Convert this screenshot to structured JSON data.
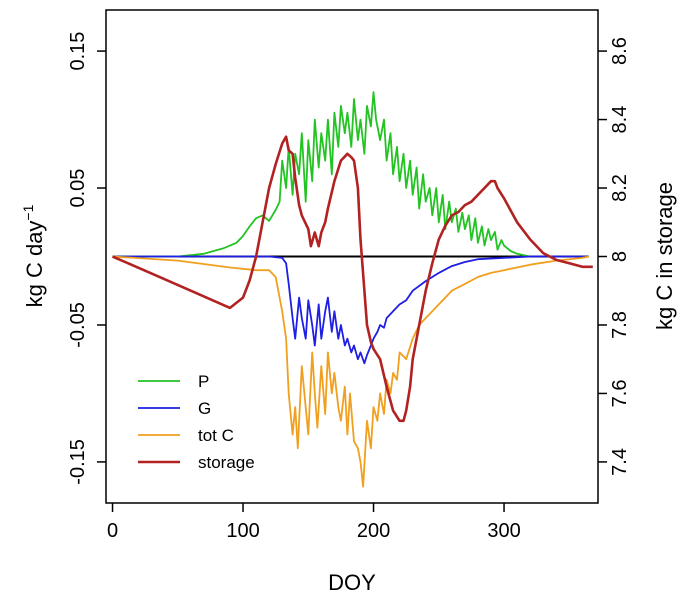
{
  "chart_data": {
    "type": "line",
    "xlabel": "DOY",
    "ylabel_left": "kg C day",
    "ylabel_left_superscript": "−1",
    "ylabel_right": "kg C in storage",
    "xlim": [
      -5,
      372
    ],
    "ylim_left": [
      -0.18,
      0.18
    ],
    "ylim_right": [
      7.28,
      8.72
    ],
    "x_ticks": [
      0,
      100,
      200,
      300
    ],
    "x_tick_labels": [
      "0",
      "100",
      "200",
      "300"
    ],
    "y_left_ticks": [
      0.15,
      0.05,
      -0.05,
      -0.15
    ],
    "y_left_tick_labels": [
      "0.15",
      "0.05",
      "-0.05",
      "-0.15"
    ],
    "y_right_ticks": [
      8.6,
      8.4,
      8.2,
      8.0,
      7.8,
      7.6,
      7.4
    ],
    "y_right_tick_labels": [
      "8.6",
      "8.4",
      "8.2",
      "8",
      "7.8",
      "7.6",
      "7.4"
    ],
    "grid": false,
    "legend_position": "bottom-left",
    "reference_line": {
      "y": 0,
      "color": "#000000"
    },
    "series": [
      {
        "name": "P",
        "axis": "left",
        "color": "#22c322",
        "x": [
          0,
          50,
          70,
          85,
          95,
          100,
          105,
          110,
          115,
          120,
          125,
          128,
          130,
          133,
          135,
          138,
          140,
          143,
          145,
          148,
          150,
          153,
          155,
          158,
          160,
          163,
          165,
          168,
          170,
          173,
          175,
          178,
          180,
          183,
          185,
          188,
          190,
          193,
          195,
          198,
          200,
          202,
          205,
          208,
          210,
          213,
          215,
          218,
          220,
          223,
          225,
          228,
          230,
          233,
          235,
          238,
          240,
          243,
          245,
          248,
          250,
          253,
          255,
          258,
          260,
          263,
          265,
          268,
          270,
          273,
          275,
          278,
          280,
          283,
          285,
          288,
          290,
          293,
          295,
          298,
          300,
          305,
          310,
          315,
          320
        ],
        "values": [
          0,
          0,
          0.002,
          0.006,
          0.01,
          0.015,
          0.022,
          0.028,
          0.03,
          0.026,
          0.034,
          0.04,
          0.07,
          0.05,
          0.08,
          0.045,
          0.075,
          0.06,
          0.09,
          0.04,
          0.085,
          0.055,
          0.1,
          0.065,
          0.09,
          0.07,
          0.1,
          0.06,
          0.105,
          0.08,
          0.11,
          0.09,
          0.105,
          0.08,
          0.115,
          0.085,
          0.1,
          0.075,
          0.11,
          0.095,
          0.12,
          0.1,
          0.085,
          0.1,
          0.07,
          0.09,
          0.06,
          0.08,
          0.055,
          0.075,
          0.05,
          0.07,
          0.045,
          0.065,
          0.035,
          0.06,
          0.04,
          0.05,
          0.03,
          0.05,
          0.025,
          0.045,
          0.02,
          0.04,
          0.025,
          0.035,
          0.018,
          0.032,
          0.02,
          0.03,
          0.012,
          0.028,
          0.01,
          0.022,
          0.008,
          0.02,
          0.012,
          0.018,
          0.005,
          0.012,
          0.008,
          0.004,
          0.002,
          0.001,
          0
        ]
      },
      {
        "name": "G",
        "axis": "left",
        "color": "#1e1ee6",
        "x": [
          0,
          120,
          130,
          133,
          135,
          138,
          140,
          143,
          145,
          148,
          150,
          153,
          155,
          158,
          160,
          163,
          165,
          168,
          170,
          173,
          175,
          178,
          180,
          183,
          185,
          188,
          190,
          193,
          195,
          198,
          200,
          203,
          205,
          208,
          210,
          215,
          220,
          225,
          230,
          240,
          250,
          260,
          270,
          280,
          300,
          320,
          340,
          360,
          365
        ],
        "values": [
          0,
          0,
          -0.001,
          -0.005,
          -0.02,
          -0.045,
          -0.06,
          -0.03,
          -0.045,
          -0.06,
          -0.032,
          -0.05,
          -0.065,
          -0.035,
          -0.06,
          -0.04,
          -0.03,
          -0.055,
          -0.04,
          -0.06,
          -0.05,
          -0.065,
          -0.06,
          -0.07,
          -0.065,
          -0.075,
          -0.07,
          -0.078,
          -0.072,
          -0.065,
          -0.06,
          -0.055,
          -0.05,
          -0.052,
          -0.045,
          -0.04,
          -0.035,
          -0.032,
          -0.025,
          -0.018,
          -0.012,
          -0.007,
          -0.004,
          -0.002,
          -0.001,
          0,
          0,
          0,
          0
        ]
      },
      {
        "name": "tot C",
        "axis": "left",
        "color": "#f0a01e",
        "x": [
          0,
          50,
          90,
          110,
          120,
          125,
          130,
          133,
          135,
          138,
          140,
          142,
          145,
          148,
          150,
          153,
          155,
          157,
          160,
          163,
          165,
          168,
          170,
          173,
          175,
          178,
          180,
          182,
          185,
          188,
          190,
          192,
          195,
          198,
          200,
          203,
          205,
          208,
          210,
          213,
          215,
          218,
          220,
          225,
          230,
          235,
          240,
          245,
          250,
          255,
          260,
          270,
          280,
          290,
          300,
          320,
          340,
          360,
          365
        ],
        "values": [
          0,
          -0.003,
          -0.008,
          -0.01,
          -0.01,
          -0.015,
          -0.04,
          -0.06,
          -0.1,
          -0.13,
          -0.11,
          -0.14,
          -0.08,
          -0.11,
          -0.13,
          -0.07,
          -0.1,
          -0.125,
          -0.08,
          -0.115,
          -0.07,
          -0.1,
          -0.085,
          -0.11,
          -0.12,
          -0.095,
          -0.13,
          -0.1,
          -0.135,
          -0.14,
          -0.15,
          -0.168,
          -0.12,
          -0.14,
          -0.11,
          -0.12,
          -0.1,
          -0.115,
          -0.09,
          -0.1,
          -0.085,
          -0.09,
          -0.07,
          -0.075,
          -0.06,
          -0.05,
          -0.045,
          -0.04,
          -0.035,
          -0.03,
          -0.025,
          -0.02,
          -0.015,
          -0.012,
          -0.01,
          -0.006,
          -0.003,
          -0.001,
          0
        ]
      },
      {
        "name": "storage",
        "axis": "right",
        "color": "#b22222",
        "x": [
          0,
          30,
          60,
          90,
          100,
          105,
          110,
          115,
          120,
          125,
          130,
          133,
          135,
          138,
          140,
          143,
          145,
          150,
          152,
          155,
          158,
          160,
          163,
          165,
          170,
          175,
          180,
          183,
          185,
          188,
          190,
          193,
          195,
          198,
          200,
          205,
          210,
          215,
          220,
          223,
          225,
          228,
          230,
          235,
          240,
          245,
          250,
          255,
          260,
          265,
          270,
          275,
          280,
          285,
          290,
          293,
          295,
          300,
          310,
          320,
          330,
          340,
          350,
          360,
          368
        ],
        "values": [
          8.0,
          7.95,
          7.9,
          7.85,
          7.88,
          7.93,
          8.0,
          8.1,
          8.2,
          8.27,
          8.33,
          8.35,
          8.31,
          8.3,
          8.23,
          8.15,
          8.12,
          8.08,
          8.03,
          8.07,
          8.03,
          8.07,
          8.1,
          8.14,
          8.22,
          8.28,
          8.3,
          8.29,
          8.28,
          8.2,
          8.05,
          7.9,
          7.8,
          7.75,
          7.73,
          7.7,
          7.62,
          7.55,
          7.52,
          7.52,
          7.55,
          7.62,
          7.7,
          7.8,
          7.9,
          7.98,
          8.05,
          8.09,
          8.12,
          8.13,
          8.15,
          8.16,
          8.18,
          8.2,
          8.22,
          8.22,
          8.2,
          8.17,
          8.1,
          8.05,
          8.01,
          7.99,
          7.98,
          7.97,
          7.97
        ]
      }
    ]
  }
}
